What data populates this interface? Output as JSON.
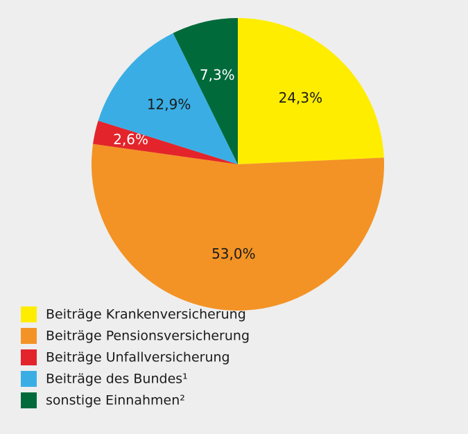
{
  "chart_data": {
    "type": "pie",
    "categories": [
      "Beiträge Krankenversicherung",
      "Beiträge Pensionsversicherung",
      "Beiträge Unfallversicherung",
      "Beiträge des Bundes¹",
      "sonstige Einnahmen²"
    ],
    "values": [
      24.3,
      53.0,
      2.6,
      12.9,
      7.3
    ],
    "value_labels": [
      "24,3%",
      "53,0%",
      "2,6%",
      "12,9%",
      "7,3%"
    ],
    "colors": [
      "#ffed00",
      "#f39325",
      "#e3242b",
      "#3aaee4",
      "#006a3b"
    ],
    "legend": "bottom-left"
  }
}
